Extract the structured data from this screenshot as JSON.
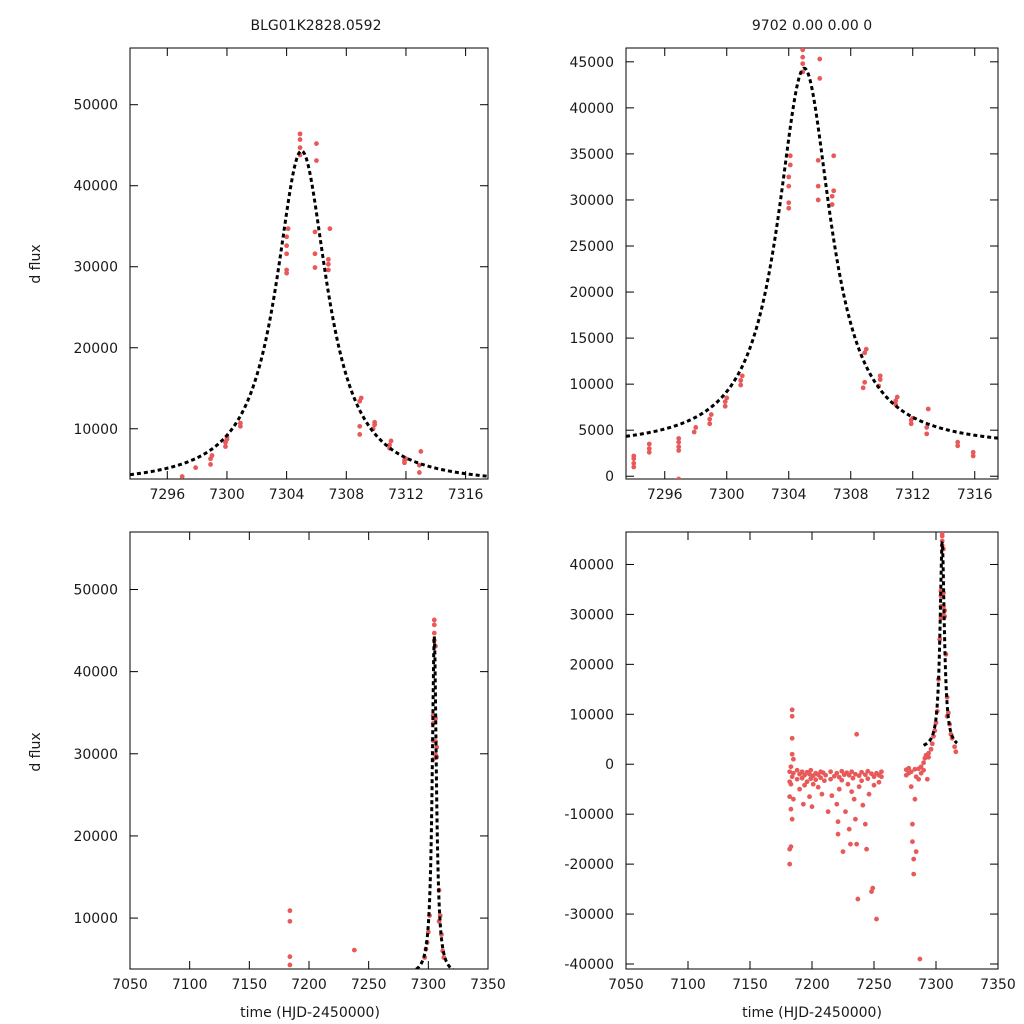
{
  "figure": {
    "title_left": "BLG01K2828.0592",
    "title_right": "9702   0.00   0.00   0",
    "ylabel": "d flux",
    "xlabel": "time (HJD-2450000)"
  },
  "colors": {
    "data_points": "#e85a5a",
    "model_curve": "#000000"
  },
  "chart_data": [
    {
      "id": "top-left",
      "type": "scatter",
      "description_role": "zoomed light curve",
      "xlim": [
        7293.5,
        7317.5
      ],
      "ylim": [
        3800,
        57000
      ],
      "xticks": [
        7296,
        7300,
        7304,
        7308,
        7312,
        7316
      ],
      "yticks": [
        10000,
        20000,
        30000,
        40000,
        50000
      ],
      "model": {
        "t0": 7305.0,
        "peak": 44300,
        "baseline": 3000,
        "width": 2.1
      },
      "points": [
        [
          7297.0,
          4100
        ],
        [
          7297.9,
          5200
        ],
        [
          7298.9,
          5600
        ],
        [
          7298.9,
          6300
        ],
        [
          7299.0,
          6700
        ],
        [
          7299.9,
          7800
        ],
        [
          7299.9,
          8300
        ],
        [
          7300.0,
          8700
        ],
        [
          7300.0,
          9000
        ],
        [
          7300.9,
          10300
        ],
        [
          7300.9,
          10700
        ],
        [
          7304.0,
          29200
        ],
        [
          7304.0,
          29600
        ],
        [
          7304.0,
          31600
        ],
        [
          7304.0,
          32600
        ],
        [
          7304.0,
          33700
        ],
        [
          7304.1,
          34700
        ],
        [
          7304.9,
          43800
        ],
        [
          7304.9,
          44700
        ],
        [
          7304.9,
          45700
        ],
        [
          7304.9,
          46400
        ],
        [
          7305.9,
          29900
        ],
        [
          7305.9,
          31600
        ],
        [
          7305.9,
          34300
        ],
        [
          7306.0,
          43100
        ],
        [
          7306.0,
          45200
        ],
        [
          7306.8,
          29600
        ],
        [
          7306.8,
          30300
        ],
        [
          7306.8,
          30900
        ],
        [
          7306.9,
          34700
        ],
        [
          7308.9,
          9300
        ],
        [
          7308.9,
          10300
        ],
        [
          7308.9,
          13400
        ],
        [
          7309.0,
          13800
        ],
        [
          7309.8,
          10000
        ],
        [
          7309.9,
          10500
        ],
        [
          7309.9,
          10800
        ],
        [
          7310.9,
          7600
        ],
        [
          7310.9,
          8000
        ],
        [
          7311.0,
          8500
        ],
        [
          7311.9,
          5800
        ],
        [
          7311.9,
          6100
        ],
        [
          7312.0,
          6300
        ],
        [
          7312.9,
          4600
        ],
        [
          7312.9,
          5500
        ],
        [
          7313.0,
          7200
        ]
      ]
    },
    {
      "id": "top-right",
      "type": "scatter",
      "description_role": "zoomed light curve",
      "xlim": [
        7293.5,
        7317.5
      ],
      "ylim": [
        -300,
        46500
      ],
      "xticks": [
        7296,
        7300,
        7304,
        7308,
        7312,
        7316
      ],
      "yticks": [
        0,
        5000,
        10000,
        15000,
        20000,
        25000,
        30000,
        35000,
        40000,
        45000
      ],
      "model": {
        "t0": 7305.0,
        "peak": 44300,
        "baseline": 3000,
        "width": 2.1
      },
      "points": [
        [
          7294.0,
          1000
        ],
        [
          7294.0,
          1400
        ],
        [
          7294.0,
          1900
        ],
        [
          7294.0,
          2200
        ],
        [
          7295.0,
          2600
        ],
        [
          7295.0,
          3000
        ],
        [
          7295.0,
          3500
        ],
        [
          7296.9,
          -300
        ],
        [
          7296.9,
          2800
        ],
        [
          7296.9,
          3200
        ],
        [
          7296.9,
          3700
        ],
        [
          7296.9,
          4100
        ],
        [
          7297.9,
          4800
        ],
        [
          7298.0,
          5300
        ],
        [
          7298.9,
          5700
        ],
        [
          7298.9,
          6200
        ],
        [
          7299.0,
          6700
        ],
        [
          7299.9,
          7600
        ],
        [
          7299.9,
          8100
        ],
        [
          7300.0,
          8500
        ],
        [
          7300.9,
          9900
        ],
        [
          7300.9,
          10400
        ],
        [
          7301.0,
          10900
        ],
        [
          7304.0,
          29100
        ],
        [
          7304.0,
          29700
        ],
        [
          7304.0,
          31500
        ],
        [
          7304.0,
          32500
        ],
        [
          7304.1,
          33800
        ],
        [
          7304.1,
          34800
        ],
        [
          7304.9,
          43900
        ],
        [
          7304.9,
          44800
        ],
        [
          7304.9,
          45500
        ],
        [
          7304.9,
          46300
        ],
        [
          7305.9,
          30000
        ],
        [
          7305.9,
          31500
        ],
        [
          7305.9,
          34300
        ],
        [
          7306.0,
          43200
        ],
        [
          7306.0,
          45300
        ],
        [
          7306.8,
          29500
        ],
        [
          7306.8,
          30400
        ],
        [
          7306.9,
          31000
        ],
        [
          7306.9,
          34800
        ],
        [
          7308.8,
          9600
        ],
        [
          7308.9,
          10200
        ],
        [
          7308.9,
          13400
        ],
        [
          7309.0,
          13800
        ],
        [
          7309.8,
          9800
        ],
        [
          7309.9,
          10500
        ],
        [
          7309.9,
          10900
        ],
        [
          7310.9,
          7800
        ],
        [
          7310.9,
          8200
        ],
        [
          7311.0,
          8600
        ],
        [
          7311.9,
          5700
        ],
        [
          7311.9,
          6100
        ],
        [
          7312.0,
          6300
        ],
        [
          7312.9,
          4600
        ],
        [
          7312.9,
          5300
        ],
        [
          7313.0,
          7300
        ],
        [
          7314.9,
          3300
        ],
        [
          7314.9,
          3700
        ],
        [
          7315.9,
          2200
        ],
        [
          7315.9,
          2600
        ]
      ]
    },
    {
      "id": "bottom-left",
      "type": "scatter",
      "description_role": "full light curve",
      "xlim": [
        7050,
        7350
      ],
      "ylim": [
        3800,
        57000
      ],
      "xticks": [
        7050,
        7100,
        7150,
        7200,
        7250,
        7300,
        7350
      ],
      "yticks": [
        10000,
        20000,
        30000,
        40000,
        50000
      ],
      "model": {
        "t0": 7305.0,
        "peak": 44300,
        "baseline": 3000,
        "width": 2.1
      },
      "points": [
        [
          7184,
          10900
        ],
        [
          7184,
          9600
        ],
        [
          7184,
          5300
        ],
        [
          7184,
          4300
        ],
        [
          7238,
          6100
        ],
        [
          7297,
          5200
        ],
        [
          7298,
          6200
        ],
        [
          7299,
          7000
        ],
        [
          7300,
          8300
        ],
        [
          7301,
          10300
        ],
        [
          7304,
          29300
        ],
        [
          7304,
          31600
        ],
        [
          7304,
          33700
        ],
        [
          7304,
          34700
        ],
        [
          7305,
          43800
        ],
        [
          7305,
          44700
        ],
        [
          7305,
          45700
        ],
        [
          7305,
          46300
        ],
        [
          7306,
          29900
        ],
        [
          7306,
          31500
        ],
        [
          7306,
          34300
        ],
        [
          7306,
          43100
        ],
        [
          7307,
          29600
        ],
        [
          7307,
          30800
        ],
        [
          7309,
          9600
        ],
        [
          7309,
          13400
        ],
        [
          7310,
          10300
        ],
        [
          7311,
          8000
        ],
        [
          7312,
          6000
        ],
        [
          7313,
          5200
        ]
      ]
    },
    {
      "id": "bottom-right",
      "type": "scatter",
      "description_role": "full light curve",
      "xlim": [
        7050,
        7350
      ],
      "ylim": [
        -41000,
        46500
      ],
      "xticks": [
        7050,
        7100,
        7150,
        7200,
        7250,
        7300,
        7350
      ],
      "yticks": [
        -40000,
        -30000,
        -20000,
        -10000,
        0,
        10000,
        20000,
        30000,
        40000
      ],
      "model": {
        "t0": 7305.0,
        "peak": 44300,
        "baseline": 3000,
        "width": 2.1,
        "extent": [
          7290,
          7317
        ]
      },
      "points": [
        [
          7182,
          -1500
        ],
        [
          7182,
          -3500
        ],
        [
          7182,
          -6500
        ],
        [
          7182,
          -17000
        ],
        [
          7182,
          -20000
        ],
        [
          7183,
          -500
        ],
        [
          7183,
          -4000
        ],
        [
          7183,
          -9000
        ],
        [
          7183,
          -16500
        ],
        [
          7184,
          10900
        ],
        [
          7184,
          9600
        ],
        [
          7184,
          5200
        ],
        [
          7184,
          2000
        ],
        [
          7184,
          -2500
        ],
        [
          7184,
          -11000
        ],
        [
          7185,
          1000
        ],
        [
          7185,
          -1800
        ],
        [
          7185,
          -7000
        ],
        [
          7188,
          -1200
        ],
        [
          7188,
          -3000
        ],
        [
          7190,
          -2000
        ],
        [
          7190,
          -5000
        ],
        [
          7192,
          -1500
        ],
        [
          7192,
          -2800
        ],
        [
          7193,
          -8000
        ],
        [
          7194,
          -2200
        ],
        [
          7194,
          -4200
        ],
        [
          7196,
          -1600
        ],
        [
          7196,
          -3500
        ],
        [
          7198,
          -2000
        ],
        [
          7198,
          -6500
        ],
        [
          7199,
          -1200
        ],
        [
          7199,
          -2900
        ],
        [
          7200,
          -8500
        ],
        [
          7201,
          -2300
        ],
        [
          7201,
          -4000
        ],
        [
          7203,
          -1800
        ],
        [
          7203,
          -3100
        ],
        [
          7205,
          -2100
        ],
        [
          7205,
          -4600
        ],
        [
          7207,
          -1500
        ],
        [
          7207,
          -2700
        ],
        [
          7208,
          -6000
        ],
        [
          7209,
          -1700
        ],
        [
          7210,
          -3300
        ],
        [
          7211,
          -2200
        ],
        [
          7213,
          -9500
        ],
        [
          7215,
          -1500
        ],
        [
          7215,
          -3000
        ],
        [
          7216,
          -6300
        ],
        [
          7218,
          -2400
        ],
        [
          7220,
          -1800
        ],
        [
          7220,
          -8000
        ],
        [
          7221,
          -11500
        ],
        [
          7221,
          -14000
        ],
        [
          7222,
          -2600
        ],
        [
          7222,
          -5000
        ],
        [
          7224,
          -1400
        ],
        [
          7224,
          -3200
        ],
        [
          7225,
          -17500
        ],
        [
          7226,
          -2100
        ],
        [
          7227,
          -9500
        ],
        [
          7228,
          -1700
        ],
        [
          7229,
          -4000
        ],
        [
          7230,
          -2200
        ],
        [
          7230,
          -13000
        ],
        [
          7231,
          -16000
        ],
        [
          7232,
          -1500
        ],
        [
          7232,
          -5500
        ],
        [
          7233,
          -2800
        ],
        [
          7234,
          -7000
        ],
        [
          7235,
          -2000
        ],
        [
          7235,
          -11000
        ],
        [
          7236,
          6000
        ],
        [
          7236,
          -16000
        ],
        [
          7237,
          -27000
        ],
        [
          7238,
          -2300
        ],
        [
          7238,
          -4500
        ],
        [
          7240,
          -1600
        ],
        [
          7240,
          -3300
        ],
        [
          7241,
          -8200
        ],
        [
          7243,
          -2100
        ],
        [
          7243,
          -12000
        ],
        [
          7244,
          -17000
        ],
        [
          7245,
          -1400
        ],
        [
          7245,
          -2900
        ],
        [
          7246,
          -6000
        ],
        [
          7248,
          -1900
        ],
        [
          7248,
          -25500
        ],
        [
          7249,
          -24800
        ],
        [
          7250,
          -2500
        ],
        [
          7250,
          -4200
        ],
        [
          7252,
          -31000
        ],
        [
          7252,
          -1800
        ],
        [
          7254,
          -2200
        ],
        [
          7254,
          -3600
        ],
        [
          7256,
          -1500
        ],
        [
          7256,
          -2500
        ],
        [
          7276,
          -1100
        ],
        [
          7276,
          -2200
        ],
        [
          7278,
          -800
        ],
        [
          7278,
          -1800
        ],
        [
          7280,
          -1500
        ],
        [
          7280,
          -4500
        ],
        [
          7281,
          -12000
        ],
        [
          7281,
          -15500
        ],
        [
          7282,
          -19000
        ],
        [
          7282,
          -22000
        ],
        [
          7283,
          -7000
        ],
        [
          7283,
          -1000
        ],
        [
          7284,
          -2500
        ],
        [
          7284,
          -17500
        ],
        [
          7286,
          -900
        ],
        [
          7286,
          -3000
        ],
        [
          7287,
          -39000
        ],
        [
          7288,
          -500
        ],
        [
          7288,
          -1800
        ],
        [
          7290,
          300
        ],
        [
          7290,
          -1200
        ],
        [
          7291,
          1200
        ],
        [
          7292,
          1800
        ],
        [
          7293,
          -3000
        ],
        [
          7294,
          1400
        ],
        [
          7294,
          2200
        ],
        [
          7296,
          3000
        ],
        [
          7297,
          4100
        ],
        [
          7298,
          5600
        ],
        [
          7299,
          6700
        ],
        [
          7300,
          8300
        ],
        [
          7301,
          10600
        ],
        [
          7302,
          17000
        ],
        [
          7303,
          25000
        ],
        [
          7304,
          29300
        ],
        [
          7304,
          31600
        ],
        [
          7304,
          33700
        ],
        [
          7304,
          34700
        ],
        [
          7305,
          43800
        ],
        [
          7305,
          44700
        ],
        [
          7305,
          45700
        ],
        [
          7305,
          46300
        ],
        [
          7306,
          29900
        ],
        [
          7306,
          31500
        ],
        [
          7306,
          34300
        ],
        [
          7306,
          43100
        ],
        [
          7307,
          29600
        ],
        [
          7307,
          30800
        ],
        [
          7308,
          22000
        ],
        [
          7309,
          9600
        ],
        [
          7309,
          13400
        ],
        [
          7310,
          10300
        ],
        [
          7311,
          8000
        ],
        [
          7312,
          6000
        ],
        [
          7313,
          5200
        ],
        [
          7315,
          3500
        ],
        [
          7316,
          2500
        ]
      ]
    }
  ]
}
